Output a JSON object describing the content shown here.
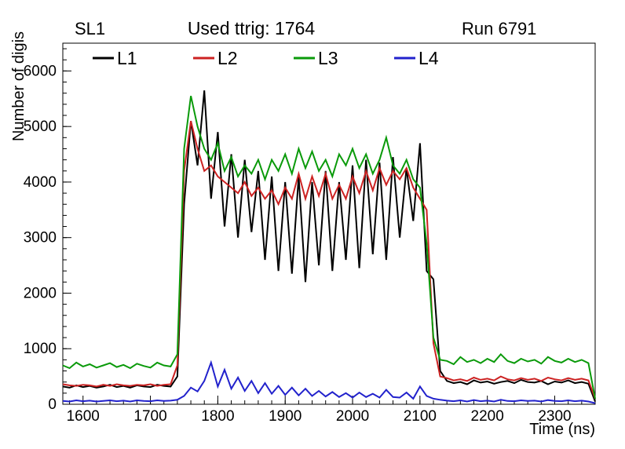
{
  "titles": {
    "left": "SL1",
    "center": "Used ttrig: 1764",
    "right": "Run 6791"
  },
  "chart_data": {
    "type": "line",
    "title": "Used ttrig: 1764",
    "xlabel": "Time (ns)",
    "ylabel": "Number of digis",
    "xlim": [
      1570,
      2360
    ],
    "ylim": [
      0,
      6500
    ],
    "x_major_ticks": [
      1600,
      1700,
      1800,
      1900,
      2000,
      2100,
      2200,
      2300
    ],
    "y_major_ticks": [
      0,
      1000,
      2000,
      3000,
      4000,
      5000,
      6000
    ],
    "x_minor_step": 20,
    "y_minor_step": 200,
    "grid": false,
    "legend_position": "top-inside",
    "x": [
      1570,
      1580,
      1590,
      1600,
      1610,
      1620,
      1630,
      1640,
      1650,
      1660,
      1670,
      1680,
      1690,
      1700,
      1710,
      1720,
      1730,
      1740,
      1750,
      1760,
      1770,
      1780,
      1790,
      1800,
      1810,
      1820,
      1830,
      1840,
      1850,
      1860,
      1870,
      1880,
      1890,
      1900,
      1910,
      1920,
      1930,
      1940,
      1950,
      1960,
      1970,
      1980,
      1990,
      2000,
      2010,
      2020,
      2030,
      2040,
      2050,
      2060,
      2070,
      2080,
      2090,
      2100,
      2110,
      2120,
      2130,
      2140,
      2150,
      2160,
      2170,
      2180,
      2190,
      2200,
      2210,
      2220,
      2230,
      2240,
      2250,
      2260,
      2270,
      2280,
      2290,
      2300,
      2310,
      2320,
      2330,
      2340,
      2350,
      2360
    ],
    "series": [
      {
        "name": "L1",
        "color": "#000000",
        "values": [
          320,
          300,
          340,
          310,
          330,
          300,
          320,
          350,
          310,
          330,
          300,
          340,
          320,
          310,
          350,
          330,
          320,
          500,
          3600,
          5100,
          4300,
          5650,
          3700,
          4900,
          3200,
          4500,
          3000,
          4400,
          3100,
          4200,
          2600,
          4100,
          2400,
          4000,
          2350,
          4100,
          2200,
          4000,
          2500,
          4200,
          2400,
          4000,
          2600,
          4300,
          2450,
          4400,
          2700,
          4350,
          2600,
          4450,
          3000,
          4250,
          3300,
          4700,
          2400,
          2250,
          600,
          420,
          380,
          400,
          360,
          430,
          390,
          410,
          370,
          400,
          420,
          380,
          440,
          400,
          390,
          420,
          360,
          410,
          390,
          430,
          380,
          400,
          370,
          50
        ]
      },
      {
        "name": "L2",
        "color": "#cc2222",
        "values": [
          360,
          340,
          330,
          350,
          340,
          320,
          350,
          330,
          360,
          340,
          330,
          350,
          340,
          360,
          330,
          350,
          360,
          700,
          4200,
          5100,
          4600,
          4200,
          4300,
          4100,
          4000,
          3900,
          3800,
          4000,
          3750,
          3900,
          3700,
          3850,
          3600,
          3900,
          3700,
          4150,
          3700,
          4100,
          3750,
          4150,
          3700,
          3950,
          3700,
          4100,
          3800,
          4200,
          3850,
          4250,
          3950,
          4200,
          4050,
          4250,
          3900,
          3700,
          3500,
          1100,
          500,
          470,
          430,
          450,
          420,
          480,
          440,
          460,
          430,
          500,
          450,
          430,
          470,
          440,
          460,
          420,
          480,
          450,
          430,
          470,
          440,
          460,
          430,
          100
        ]
      },
      {
        "name": "L3",
        "color": "#0a9a0a",
        "values": [
          700,
          650,
          750,
          680,
          720,
          660,
          700,
          740,
          670,
          710,
          650,
          730,
          690,
          660,
          750,
          700,
          680,
          900,
          4600,
          5550,
          5000,
          4600,
          4400,
          4700,
          4200,
          4450,
          4100,
          4300,
          4150,
          4400,
          4050,
          4400,
          4200,
          4500,
          4150,
          4600,
          4250,
          4550,
          4200,
          4400,
          4100,
          4500,
          4300,
          4600,
          4250,
          4500,
          4150,
          4400,
          4800,
          4300,
          4150,
          4400,
          4050,
          3900,
          2900,
          1200,
          800,
          780,
          720,
          850,
          760,
          800,
          740,
          820,
          760,
          900,
          780,
          740,
          820,
          770,
          800,
          730,
          850,
          780,
          750,
          820,
          760,
          800,
          740,
          100
        ]
      },
      {
        "name": "L4",
        "color": "#2222cc",
        "values": [
          60,
          50,
          70,
          55,
          65,
          50,
          60,
          70,
          55,
          65,
          50,
          70,
          60,
          55,
          70,
          60,
          65,
          80,
          150,
          300,
          230,
          420,
          750,
          320,
          620,
          280,
          480,
          240,
          420,
          200,
          380,
          190,
          330,
          170,
          300,
          160,
          280,
          150,
          240,
          140,
          220,
          130,
          200,
          120,
          210,
          130,
          190,
          120,
          260,
          130,
          120,
          210,
          100,
          320,
          150,
          100,
          80,
          65,
          55,
          70,
          50,
          75,
          55,
          65,
          50,
          80,
          60,
          55,
          70,
          60,
          65,
          50,
          75,
          60,
          55,
          70,
          55,
          65,
          50,
          20
        ]
      }
    ]
  }
}
